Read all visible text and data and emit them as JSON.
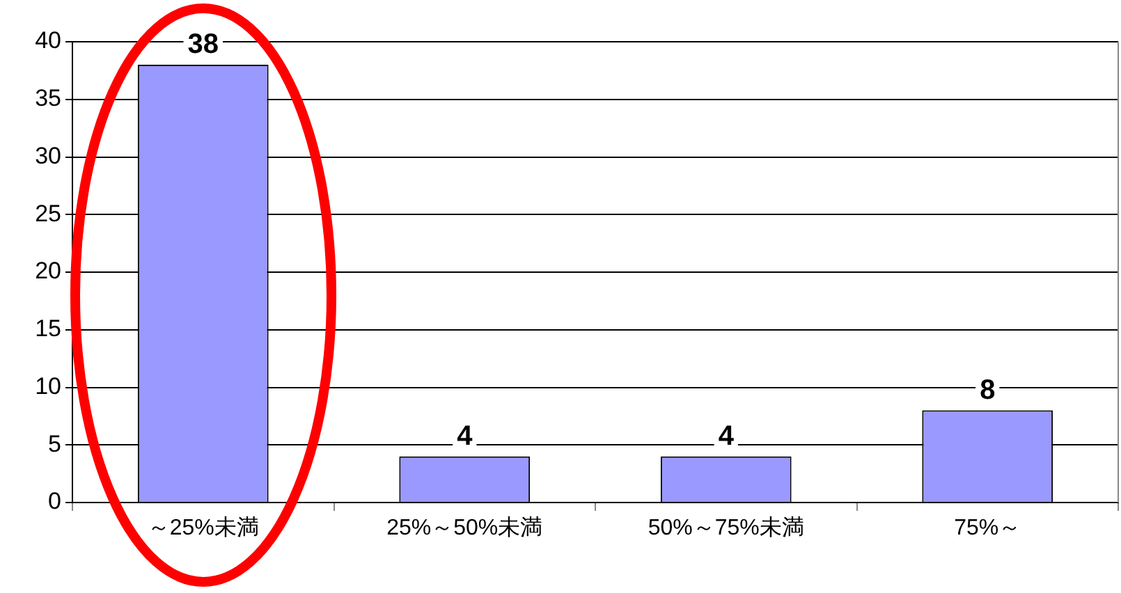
{
  "chart_data": {
    "type": "bar",
    "categories": [
      "～25%未満",
      "25%～50%未満",
      "50%～75%未満",
      "75%～"
    ],
    "values": [
      38,
      4,
      4,
      8
    ],
    "color": "#9999ff",
    "ylim": [
      0,
      40
    ],
    "yticks": [
      0,
      5,
      10,
      15,
      20,
      25,
      30,
      35,
      40
    ],
    "grid": "y",
    "legend": false,
    "data_labels": true
  }
}
